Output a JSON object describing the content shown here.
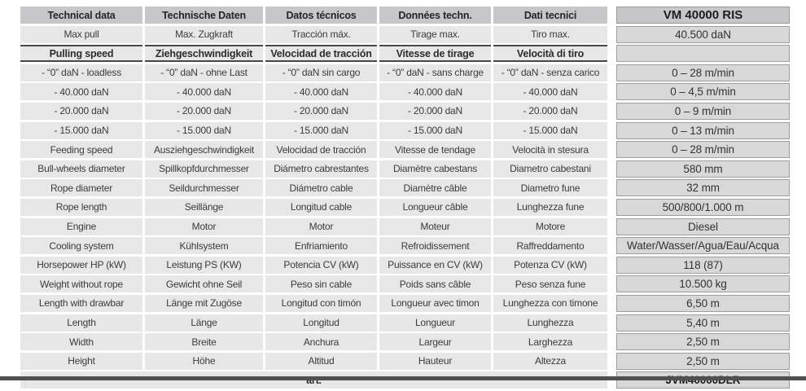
{
  "table": {
    "headers": [
      "Technical data",
      "Technische Daten",
      "Datos técnicos",
      "Données techn.",
      "Dati tecnici"
    ],
    "model_header": "VM 40000 RIS",
    "languages": [
      "en",
      "de",
      "es",
      "fr",
      "it"
    ],
    "rows": [
      {
        "style": "normal",
        "labels": [
          "Max pull",
          "Max. Zugkraft",
          "Tracción máx.",
          "Tirage max.",
          "Tiro max."
        ],
        "value": "40.500 daN"
      },
      {
        "style": "section",
        "labels": [
          "Pulling speed",
          "Ziehgeschwindigkeit",
          "Velocidad de tracción",
          "Vitesse de tirage",
          "Velocità di tiro"
        ],
        "value": ""
      },
      {
        "style": "normal",
        "labels": [
          "- “0” daN - loadless",
          "- “0” daN - ohne Last",
          "- “0” daN sin cargo",
          "- “0” daN - sans charge",
          "- “0” daN - senza carico"
        ],
        "value": "0 – 28 m/min"
      },
      {
        "style": "normal",
        "labels": [
          "- 40.000 daN",
          "- 40.000 daN",
          "- 40.000 daN",
          "- 40.000 daN",
          "- 40.000 daN"
        ],
        "value": "0 – 4,5 m/min"
      },
      {
        "style": "normal",
        "labels": [
          "- 20.000 daN",
          "- 20.000 daN",
          "- 20.000 daN",
          "- 20.000 daN",
          "- 20.000 daN"
        ],
        "value": "0 – 9 m/min"
      },
      {
        "style": "normal",
        "labels": [
          "- 15.000 daN",
          "- 15.000 daN",
          "- 15.000 daN",
          "- 15.000 daN",
          "- 15.000 daN"
        ],
        "value": "0 – 13 m/min"
      },
      {
        "style": "normal",
        "labels": [
          "Feeding speed",
          "Ausziehgeschwindigkeit",
          "Velocidad de tracción",
          "Vitesse de tendage",
          "Velocità in stesura"
        ],
        "value": "0 – 28 m/min"
      },
      {
        "style": "normal",
        "labels": [
          "Bull-wheels diameter",
          "Spillkopfdurchmesser",
          "Diámetro cabrestantes",
          "Diamètre cabestans",
          "Diametro cabestani"
        ],
        "value": "580 mm"
      },
      {
        "style": "normal",
        "labels": [
          "Rope diameter",
          "Seildurchmesser",
          "Diámetro cable",
          "Diamètre câble",
          "Diametro fune"
        ],
        "value": "32 mm"
      },
      {
        "style": "normal",
        "labels": [
          "Rope length",
          "Seillänge",
          "Longitud cable",
          "Longueur câble",
          "Lunghezza fune"
        ],
        "value": "500/800/1.000 m"
      },
      {
        "style": "normal",
        "labels": [
          "Engine",
          "Motor",
          "Motor",
          "Moteur",
          "Motore"
        ],
        "value": "Diesel"
      },
      {
        "style": "normal",
        "labels": [
          "Cooling system",
          "Kühlsystem",
          "Enfriamiento",
          "Refroidissement",
          "Raffreddamento"
        ],
        "value": "Water/Wasser/Agua/Eau/Acqua"
      },
      {
        "style": "normal",
        "labels": [
          "Horsepower HP (kW)",
          "Leistung PS (KW)",
          "Potencia CV (kW)",
          "Puissance en CV (kW)",
          "Potenza CV (kW)"
        ],
        "value": "118 (87)"
      },
      {
        "style": "normal",
        "labels": [
          "Weight without rope",
          "Gewicht ohne Seil",
          "Peso sin cable",
          "Poids sans câble",
          "Peso senza fune"
        ],
        "value": "10.500 kg"
      },
      {
        "style": "normal",
        "labels": [
          "Length with drawbar",
          "Länge mit Zugöse",
          "Longitud con timón",
          "Longueur avec timon",
          "Lunghezza con timone"
        ],
        "value": "6,50 m"
      },
      {
        "style": "normal",
        "labels": [
          "Length",
          "Länge",
          "Longitud",
          "Longueur",
          "Lunghezza"
        ],
        "value": "5,40 m"
      },
      {
        "style": "normal",
        "labels": [
          "Width",
          "Breite",
          "Anchura",
          "Largeur",
          "Larghezza"
        ],
        "value": "2,50 m"
      },
      {
        "style": "normal",
        "labels": [
          "Height",
          "Höhe",
          "Altitud",
          "Hauteur",
          "Altezza"
        ],
        "value": "2,50 m"
      }
    ],
    "footer": {
      "label": "art.",
      "value": "JVM40000DLR"
    }
  },
  "colors": {
    "header_bg": "#c7c7c9",
    "label_cell_bg": "#e7e7e8",
    "value_cell_bg": "#d8d8d9",
    "value_cell_border": "#9d9da0",
    "section_border": "#48484a",
    "text": "#3b3b3d",
    "bottom_bar": "#505053"
  }
}
